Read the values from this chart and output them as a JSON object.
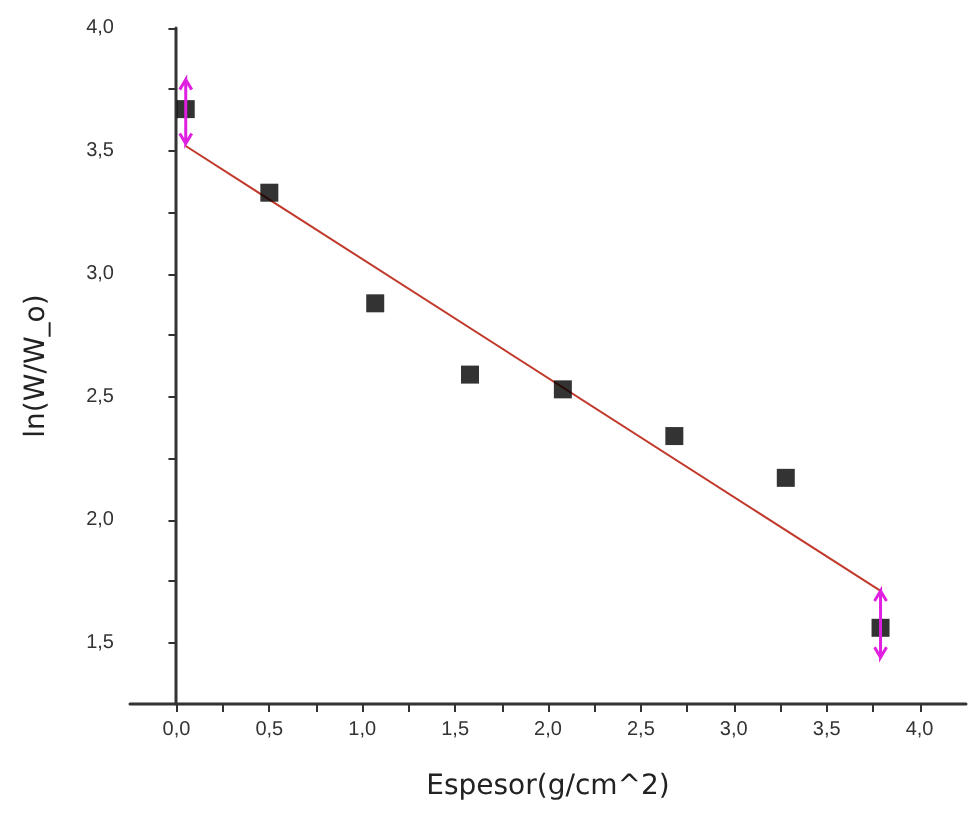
{
  "chart_data": {
    "type": "scatter",
    "xlabel": "Espesor(g/cm^2)",
    "ylabel": "ln(W/W_o)",
    "xlim": [
      -0.25,
      4.25
    ],
    "ylim": [
      1.25,
      4.0
    ],
    "xticks": [
      {
        "value": 0,
        "label": "0,0"
      },
      {
        "value": 0.25,
        "label": null
      },
      {
        "value": 0.5,
        "label": "0,5"
      },
      {
        "value": 0.75,
        "label": null
      },
      {
        "value": 1,
        "label": "1,0"
      },
      {
        "value": 1.25,
        "label": null
      },
      {
        "value": 1.5,
        "label": "1,5"
      },
      {
        "value": 1.75,
        "label": null
      },
      {
        "value": 2,
        "label": "2,0"
      },
      {
        "value": 2.25,
        "label": null
      },
      {
        "value": 2.5,
        "label": "2,5"
      },
      {
        "value": 2.75,
        "label": null
      },
      {
        "value": 3,
        "label": "3,0"
      },
      {
        "value": 3.25,
        "label": null
      },
      {
        "value": 3.5,
        "label": "3,5"
      },
      {
        "value": 3.75,
        "label": null
      },
      {
        "value": 4,
        "label": "4,0"
      }
    ],
    "yticks": [
      {
        "value": 1.5,
        "label": "1,5"
      },
      {
        "value": 1.75,
        "label": null
      },
      {
        "value": 2,
        "label": "2,0"
      },
      {
        "value": 2.25,
        "label": null
      },
      {
        "value": 2.5,
        "label": "2,5"
      },
      {
        "value": 2.75,
        "label": null
      },
      {
        "value": 3,
        "label": "3,0"
      },
      {
        "value": 3.25,
        "label": null
      },
      {
        "value": 3.5,
        "label": "3,5"
      },
      {
        "value": 3.75,
        "label": null
      },
      {
        "value": 4,
        "label": "4,0"
      }
    ],
    "series": [
      {
        "color": "#000000",
        "marker": "square",
        "x": [
          0.05,
          0.5,
          1.07,
          1.58,
          2.08,
          2.68,
          3.28,
          3.79
        ],
        "values": [
          3.67,
          3.33,
          2.88,
          2.59,
          2.53,
          2.34,
          2.17,
          1.56
        ],
        "errors": [
          [
            3.53,
            3.79
          ],
          null,
          null,
          null,
          null,
          null,
          null,
          [
            1.44,
            1.71
          ]
        ]
      },
      {
        "type": "line",
        "color": "#c0392b",
        "marker": "none",
        "line_style": "solid",
        "x": [
          0.05,
          3.79
        ],
        "values": [
          3.52,
          1.71
        ]
      }
    ]
  }
}
